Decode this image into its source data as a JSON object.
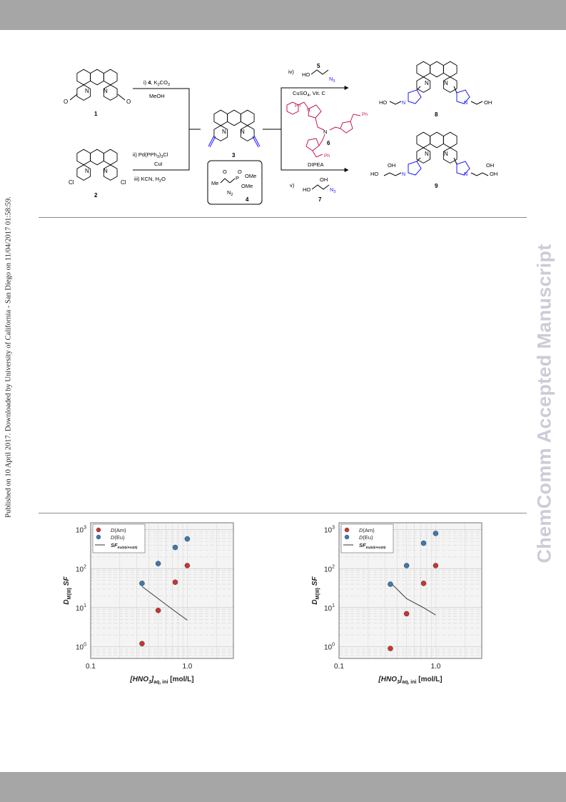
{
  "sidebar_text": "Published on 10 April 2017. Downloaded by University of California - San Diego on 11/04/2017 01:58:59.",
  "watermark": "ChemComm Accepted Manuscript",
  "scheme": {
    "compounds": {
      "c1": "1",
      "c2": "2",
      "c3": "3",
      "c4": "4",
      "c5": "5",
      "c6": "6",
      "c7": "7",
      "c8": "8",
      "c9": "9"
    },
    "conditions": {
      "step_i_a": "i) ",
      "step_i_b": "4",
      "step_i_c": ", K",
      "step_i_d": "2",
      "step_i_e": "CO",
      "step_i_f": "3",
      "step_i_solvent": "MeOH",
      "step_ii": "ii) Pd(PPh",
      "step_ii_sub": "3",
      "step_ii_end": ")",
      "step_ii_sub2": "3",
      "step_ii_cl": "Cl",
      "step_ii_cui": "CuI",
      "step_iii": "iii) KCN, H",
      "step_iii_sub": "2",
      "step_iii_o": "O",
      "step_iv": "iv)",
      "step_iv_cat": "CuSO",
      "step_iv_sub": "4",
      "step_iv_vit": ", Vit. C",
      "step_v": "v)",
      "base": "DIPEA"
    },
    "atoms": {
      "N": "N",
      "O": "O",
      "Cl": "Cl",
      "HO": "HO",
      "OH": "OH",
      "N3": "N",
      "N3sub": "3",
      "Ph": "Ph",
      "OMe": "OMe",
      "Me": "Me",
      "P": "P",
      "N2": "N",
      "N2sub": "2"
    }
  },
  "chart_data": [
    {
      "type": "scatter",
      "xlabel": "[HNO3]aq, ini [mol/L]",
      "ylabel": "DM(III) SF",
      "x_scale": "log",
      "y_scale": "log",
      "xlim": [
        0.1,
        3.0
      ],
      "ylim": [
        0.5,
        1500
      ],
      "x_ticks": [
        "0.1",
        "1.0"
      ],
      "y_ticks": [
        "10^0",
        "10^1",
        "10^2",
        "10^3"
      ],
      "grid": true,
      "legend_position": "top-left",
      "legend": [
        "D(Am)",
        "D(Eu)",
        "SFEu(III)/Am(III)"
      ],
      "series": [
        {
          "name": "D(Am)",
          "color": "#cc3333",
          "points": [
            [
              0.34,
              1.2
            ],
            [
              0.5,
              8.5
            ],
            [
              0.75,
              45
            ],
            [
              1.0,
              120
            ]
          ]
        },
        {
          "name": "D(Eu)",
          "color": "#3d79b0",
          "points": [
            [
              0.34,
              42
            ],
            [
              0.5,
              135
            ],
            [
              0.75,
              350
            ],
            [
              1.0,
              580
            ]
          ]
        },
        {
          "name": "SFEu(III)/Am(III)",
          "color": "#555555",
          "points": [
            [
              0.34,
              35
            ],
            [
              0.5,
              17
            ],
            [
              0.75,
              8
            ],
            [
              1.0,
              4.8
            ]
          ]
        }
      ]
    },
    {
      "type": "scatter",
      "xlabel": "[HNO3]aq, ini [mol/L]",
      "ylabel": "DM(III) SF",
      "x_scale": "log",
      "y_scale": "log",
      "xlim": [
        0.1,
        3.0
      ],
      "ylim": [
        0.5,
        1500
      ],
      "x_ticks": [
        "0.1",
        "1.0"
      ],
      "y_ticks": [
        "10^0",
        "10^1",
        "10^2",
        "10^3"
      ],
      "grid": true,
      "legend_position": "top-left",
      "legend": [
        "D(Am)",
        "D(Eu)",
        "SFEu(III)/Am(III)"
      ],
      "series": [
        {
          "name": "D(Am)",
          "color": "#cc3333",
          "points": [
            [
              0.34,
              0.9
            ],
            [
              0.5,
              7
            ],
            [
              0.75,
              42
            ],
            [
              1.0,
              120
            ]
          ]
        },
        {
          "name": "D(Eu)",
          "color": "#3d79b0",
          "points": [
            [
              0.34,
              40
            ],
            [
              0.5,
              120
            ],
            [
              0.75,
              450
            ],
            [
              1.0,
              800
            ]
          ]
        },
        {
          "name": "SFEu(III)/Am(III)",
          "color": "#555555",
          "points": [
            [
              0.34,
              44
            ],
            [
              0.5,
              17
            ],
            [
              0.75,
              10
            ],
            [
              1.0,
              6.5
            ]
          ]
        }
      ]
    }
  ],
  "chart_text": {
    "tick_1e0_base": "10",
    "tick_1e0_exp": "0",
    "tick_1e1_base": "10",
    "tick_1e1_exp": "1",
    "tick_1e2_base": "10",
    "tick_1e2_exp": "2",
    "tick_1e3_base": "10",
    "tick_1e3_exp": "3",
    "tick_x01": "0.1",
    "tick_x1": "1.0",
    "legend_am_d": "D",
    "legend_am": "(Am)",
    "legend_eu_d": "D",
    "legend_eu": "(Eu)",
    "legend_sf": "SF",
    "legend_sf_sub": "Eu(III)/Am(III)",
    "xlabel_main": "[HNO",
    "xlabel_sub3": "3",
    "xlabel_close": "]",
    "xlabel_sub": "aq, ini",
    "xlabel_unit": "[mol/L]",
    "ylabel_d": "D",
    "ylabel_sub": "M(III)",
    "ylabel_sf": "SF"
  }
}
